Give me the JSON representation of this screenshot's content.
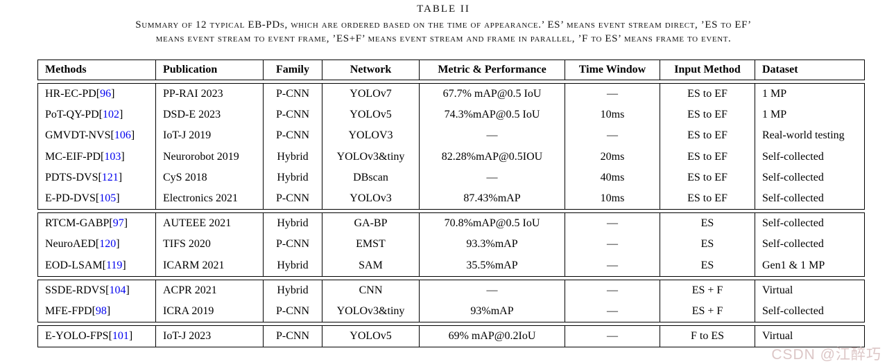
{
  "page": {
    "title": "TABLE II",
    "caption_line1": "Summary of 12 typical EB-PDs, which are ordered based on the time of appearance.’ ES’ means event stream direct, ’ES to EF’",
    "caption_line2": "means event stream to event frame, ’ES+F’ means event stream and frame in parallel, ’F to ES’ means frame to event.",
    "watermark": "CSDN @江醉巧"
  },
  "colors": {
    "citation_blue": "#0000EE",
    "text": "#000000",
    "border": "#000000",
    "watermark_pink_gray": "#dcc6c6"
  },
  "table": {
    "columns": [
      {
        "label": "Methods",
        "align": "left"
      },
      {
        "label": "Publication",
        "align": "left"
      },
      {
        "label": "Family",
        "align": "center"
      },
      {
        "label": "Network",
        "align": "center"
      },
      {
        "label": "Metric & Performance",
        "align": "center"
      },
      {
        "label": "Time Window",
        "align": "center"
      },
      {
        "label": "Input Method",
        "align": "center"
      },
      {
        "label": "Dataset",
        "align": "left"
      }
    ],
    "groups": [
      {
        "rows": [
          {
            "method": "HR-EC-PD",
            "ref": "96",
            "publication": "PP-RAI 2023",
            "family": "P-CNN",
            "network": "YOLOv7",
            "metric": "67.7% mAP@0.5 IoU",
            "time_window": "—",
            "input_method": "ES to EF",
            "dataset": "1 MP"
          },
          {
            "method": "PoT-QY-PD",
            "ref": "102",
            "publication": "DSD-E 2023",
            "family": "P-CNN",
            "network": "YOLOv5",
            "metric": "74.3%mAP@0.5 IoU",
            "time_window": "10ms",
            "input_method": "ES to EF",
            "dataset": "1 MP"
          },
          {
            "method": "GMVDT-NVS",
            "ref": "106",
            "publication": "IoT-J 2019",
            "family": "P-CNN",
            "network": "YOLOV3",
            "metric": "—",
            "time_window": "—",
            "input_method": "ES to EF",
            "dataset": "Real-world testing"
          },
          {
            "method": "MC-EIF-PD",
            "ref": "103",
            "publication": "Neurorobot 2019",
            "family": "Hybrid",
            "network": "YOLOv3&tiny",
            "metric": "82.28%mAP@0.5IOU",
            "time_window": "20ms",
            "input_method": "ES to EF",
            "dataset": "Self-collected"
          },
          {
            "method": "PDTS-DVS",
            "ref": "121",
            "publication": "CyS 2018",
            "family": "Hybrid",
            "network": "DBscan",
            "metric": "—",
            "time_window": "40ms",
            "input_method": "ES to EF",
            "dataset": "Self-collected"
          },
          {
            "method": "E-PD-DVS",
            "ref": "105",
            "publication": "Electronics 2021",
            "family": "P-CNN",
            "network": "YOLOv3",
            "metric": "87.43%mAP",
            "time_window": "10ms",
            "input_method": "ES to EF",
            "dataset": "Self-collected"
          }
        ]
      },
      {
        "rows": [
          {
            "method": "RTCM-GABP",
            "ref": "97",
            "publication": "AUTEEE 2021",
            "family": "Hybrid",
            "network": "GA-BP",
            "metric": "70.8%mAP@0.5 IoU",
            "time_window": "—",
            "input_method": "ES",
            "dataset": "Self-collected"
          },
          {
            "method": "NeuroAED",
            "ref": "120",
            "publication": "TIFS 2020",
            "family": "P-CNN",
            "network": "EMST",
            "metric": "93.3%mAP",
            "time_window": "—",
            "input_method": "ES",
            "dataset": "Self-collected"
          },
          {
            "method": "EOD-LSAM",
            "ref": "119",
            "publication": "ICARM 2021",
            "family": "Hybrid",
            "network": "SAM",
            "metric": "35.5%mAP",
            "time_window": "—",
            "input_method": "ES",
            "dataset": "Gen1 & 1 MP"
          }
        ]
      },
      {
        "rows": [
          {
            "method": "SSDE-RDVS",
            "ref": "104",
            "publication": "ACPR 2021",
            "family": "Hybrid",
            "network": "CNN",
            "metric": "—",
            "time_window": "—",
            "input_method": "ES + F",
            "dataset": "Virtual"
          },
          {
            "method": "MFE-FPD",
            "ref": "98",
            "publication": "ICRA 2019",
            "family": "P-CNN",
            "network": "YOLOv3&tiny",
            "metric": "93%mAP",
            "time_window": "—",
            "input_method": "ES + F",
            "dataset": "Self-collected"
          }
        ]
      },
      {
        "rows": [
          {
            "method": "E-YOLO-FPS",
            "ref": "101",
            "publication": "IoT-J 2023",
            "family": "P-CNN",
            "network": "YOLOv5",
            "metric": "69% mAP@0.2IoU",
            "time_window": "—",
            "input_method": "F to ES",
            "dataset": "Virtual"
          }
        ]
      }
    ]
  }
}
